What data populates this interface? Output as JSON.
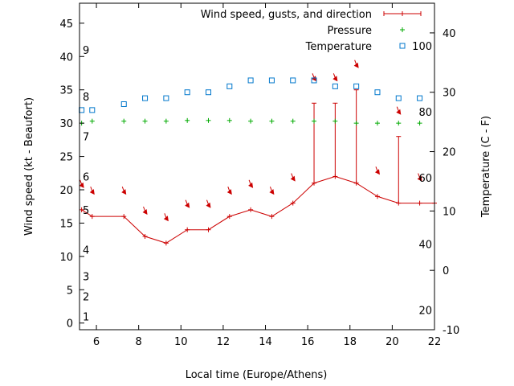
{
  "chart_data": {
    "type": "line",
    "xlabel": "Local time (Europe/Athens)",
    "ylabel_left": "Wind speed (kt - Beaufort)",
    "ylabel_right": "Temperature (C - F)",
    "xlim": [
      5.2,
      22
    ],
    "ylim_left": [
      -1,
      48
    ],
    "ylim_right": [
      -10,
      45
    ],
    "grid": false,
    "legend_position": "top-right",
    "x_ticks": [
      "6",
      "8",
      "10",
      "12",
      "14",
      "16",
      "18",
      "20",
      "22"
    ],
    "x_tick_values": [
      6,
      8,
      10,
      12,
      14,
      16,
      18,
      20,
      22
    ],
    "y_left_ticks": [
      "0",
      "5",
      "10",
      "15",
      "20",
      "25",
      "30",
      "35",
      "40",
      "45"
    ],
    "y_left_tick_values": [
      0,
      5,
      10,
      15,
      20,
      25,
      30,
      35,
      40,
      45
    ],
    "y_right_ticks": [
      "-10",
      "0",
      "10",
      "20",
      "30",
      "40"
    ],
    "y_right_tick_values": [
      -10,
      0,
      10,
      20,
      30,
      40
    ],
    "beaufort_labels": [
      {
        "label": "1",
        "y": 1
      },
      {
        "label": "2",
        "y": 4
      },
      {
        "label": "3",
        "y": 7
      },
      {
        "label": "4",
        "y": 11
      },
      {
        "label": "5",
        "y": 17
      },
      {
        "label": "6",
        "y": 22
      },
      {
        "label": "7",
        "y": 28
      },
      {
        "label": "8",
        "y": 34
      },
      {
        "label": "9",
        "y": 41
      }
    ],
    "fahrenheit_labels": [
      {
        "label": "20",
        "c": -6.7
      },
      {
        "label": "40",
        "c": 4.4
      },
      {
        "label": "60",
        "c": 15.6
      },
      {
        "label": "80",
        "c": 26.7
      },
      {
        "label": "100",
        "c": 37.8
      }
    ],
    "series": [
      {
        "name": "Wind speed, gusts, and direction",
        "color": "#cc0000",
        "x": [
          5.3,
          5.8,
          7.3,
          8.3,
          9.3,
          10.3,
          11.3,
          12.3,
          13.3,
          14.3,
          15.3,
          16.3,
          17.3,
          18.3,
          19.3,
          20.3,
          21.3,
          22.0
        ],
        "wind": [
          17,
          16,
          16,
          13,
          12,
          14,
          14,
          16,
          17,
          16,
          18,
          21,
          22,
          21,
          19,
          18,
          18,
          18
        ],
        "gust": [
          null,
          null,
          null,
          null,
          null,
          null,
          null,
          null,
          null,
          null,
          null,
          33,
          33,
          35,
          null,
          28,
          null,
          null
        ],
        "arrow_y": [
          20.5,
          19.5,
          19.5,
          16.5,
          15.5,
          17.5,
          17.5,
          19.5,
          20.5,
          19.5,
          21.5,
          36.5,
          36.5,
          38.5,
          22.5,
          31.5,
          21.5,
          null
        ]
      },
      {
        "name": "Pressure",
        "color": "#00aa00",
        "x": [
          5.3,
          5.8,
          7.3,
          8.3,
          9.3,
          10.3,
          11.3,
          12.3,
          13.3,
          14.3,
          15.3,
          16.3,
          17.3,
          18.3,
          19.3,
          20.3,
          21.3
        ],
        "values": [
          30,
          30.3,
          30.3,
          30.3,
          30.3,
          30.4,
          30.4,
          30.4,
          30.3,
          30.3,
          30.3,
          30.3,
          30.3,
          30.0,
          30.0,
          30.0,
          30.0
        ]
      },
      {
        "name": "Temperature",
        "color": "#0077cc",
        "x": [
          5.3,
          5.8,
          7.3,
          8.3,
          9.3,
          10.3,
          11.3,
          12.3,
          13.3,
          14.3,
          15.3,
          16.3,
          17.3,
          18.3,
          19.3,
          20.3,
          21.3
        ],
        "values": [
          27,
          27,
          28,
          29,
          29,
          30,
          30,
          31,
          32,
          32,
          32,
          32,
          31,
          31,
          30,
          29,
          29
        ]
      }
    ]
  }
}
